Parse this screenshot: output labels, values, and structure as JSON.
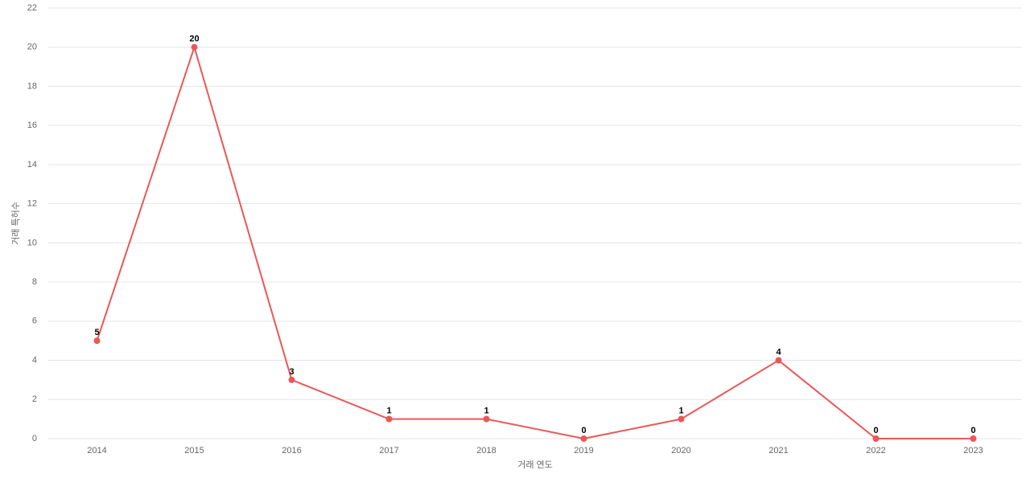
{
  "chart_data": {
    "type": "line",
    "x_label": "거래 연도",
    "y_label": "거래 특허수",
    "categories": [
      "2014",
      "2015",
      "2016",
      "2017",
      "2018",
      "2019",
      "2020",
      "2021",
      "2022",
      "2023"
    ],
    "series": [
      {
        "name": "거래 특허수",
        "color": "#eb5757",
        "values": [
          5,
          20,
          3,
          1,
          1,
          0,
          1,
          4,
          0,
          0
        ]
      }
    ],
    "ylim": [
      0,
      22
    ],
    "yticks": [
      0,
      2,
      4,
      6,
      8,
      10,
      12,
      14,
      16,
      18,
      20,
      22
    ],
    "grid": true
  }
}
